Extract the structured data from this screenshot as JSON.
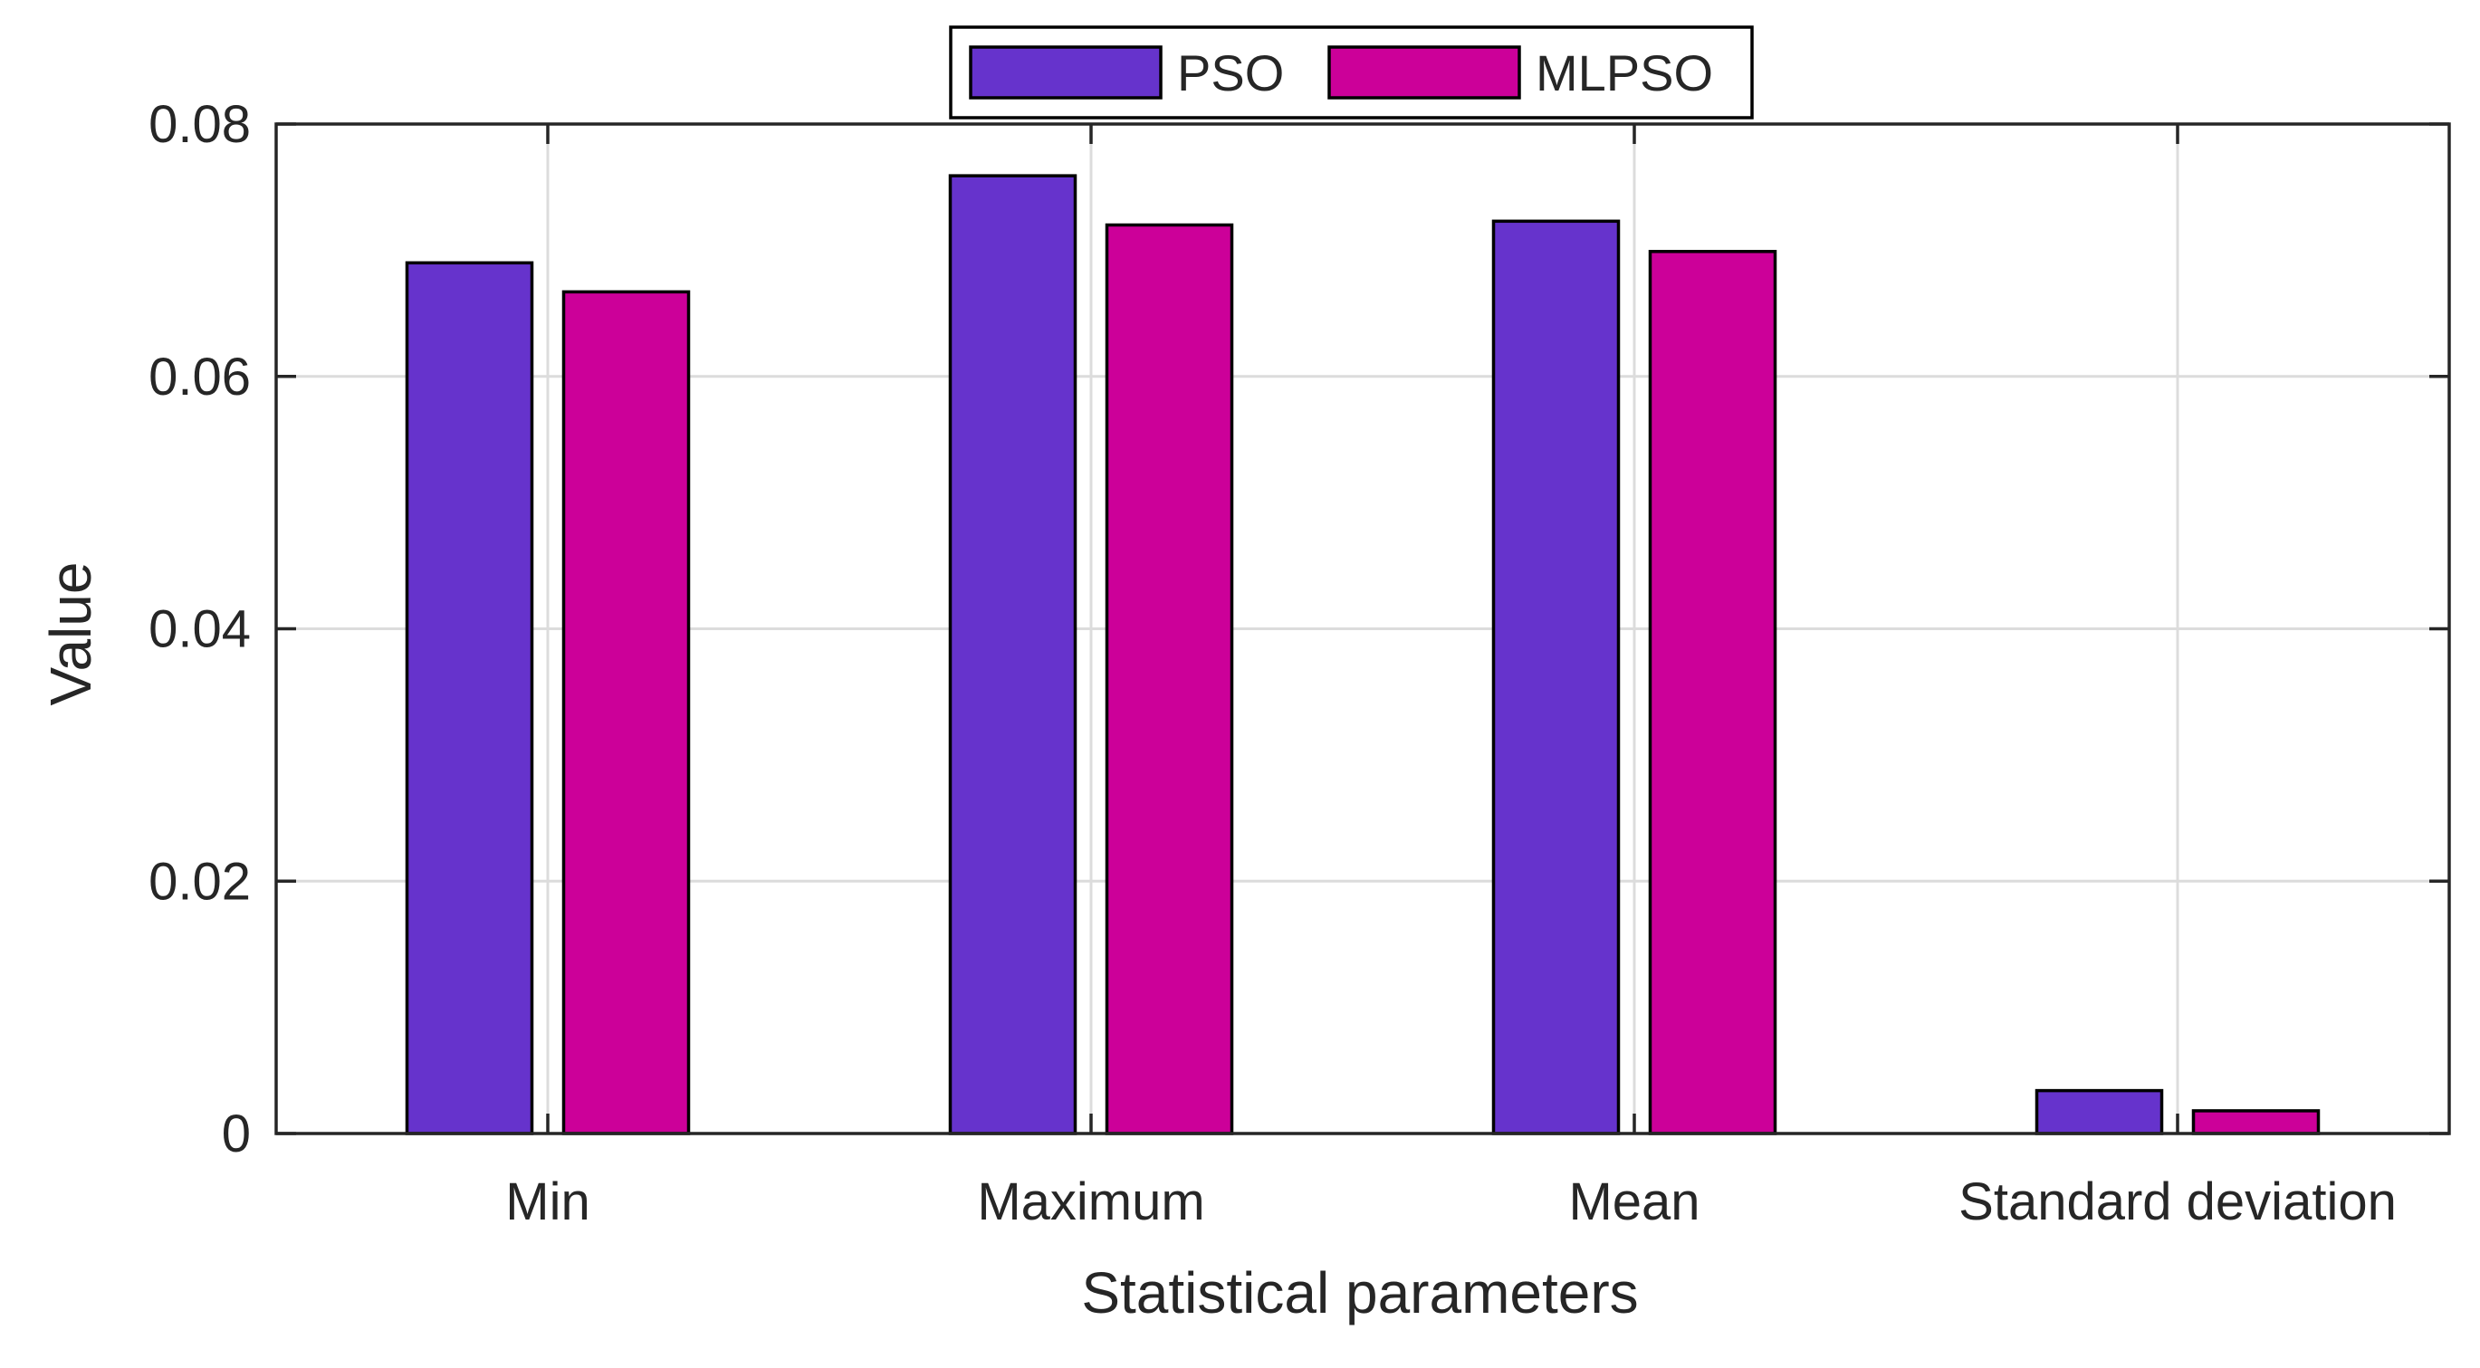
{
  "chart_data": {
    "type": "bar",
    "title": "",
    "xlabel": "Statistical parameters",
    "ylabel": "Value",
    "categories": [
      "Min",
      "Maximum",
      "Mean",
      "Standard deviation"
    ],
    "series": [
      {
        "name": "PSO",
        "color": "#6633CC",
        "values": [
          0.069,
          0.0759,
          0.0723,
          0.0034
        ]
      },
      {
        "name": "MLPSO",
        "color": "#CC0099",
        "values": [
          0.0667,
          0.072,
          0.0699,
          0.0018
        ]
      }
    ],
    "ylim": [
      0,
      0.08
    ],
    "yticks": [
      0,
      0.02,
      0.04,
      0.06,
      0.08
    ],
    "ytick_labels": [
      "0",
      "0.02",
      "0.04",
      "0.06",
      "0.08"
    ],
    "grid": true,
    "legend_position": "top-center"
  }
}
